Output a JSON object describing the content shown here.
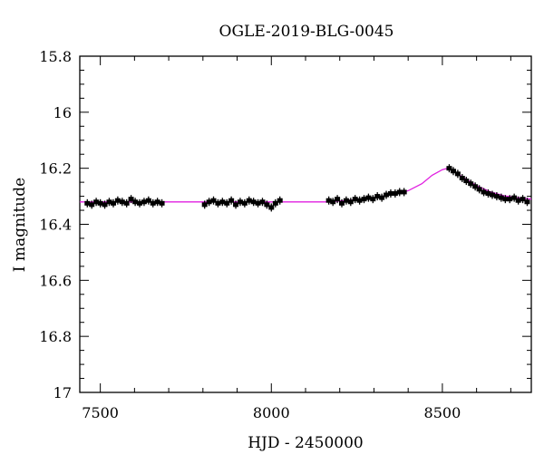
{
  "chart_data": {
    "type": "scatter",
    "title": "OGLE-2019-BLG-0045",
    "xlabel": "HJD - 2450000",
    "ylabel": "I magnitude",
    "xlim": [
      7440,
      8760
    ],
    "ylim": [
      17.0,
      15.8
    ],
    "y_inverted": true,
    "grid": false,
    "x_ticks": [
      7500,
      8000,
      8500
    ],
    "x_tick_labels": [
      "7500",
      "8000",
      "8500"
    ],
    "y_ticks": [
      15.8,
      16.0,
      16.2,
      16.4,
      16.6,
      16.8,
      17.0
    ],
    "y_tick_labels": [
      "15.8",
      "16",
      "16.2",
      "16.4",
      "16.6",
      "16.8",
      "17"
    ],
    "colors": {
      "points": "#000000",
      "model": "#e020e0"
    },
    "series": [
      {
        "type": "scatter",
        "x": [
          7462,
          7475,
          7488,
          7500,
          7513,
          7526,
          7538,
          7551,
          7564,
          7577,
          7590,
          7602,
          7615,
          7628,
          7641,
          7654,
          7667,
          7680,
          7805,
          7818,
          7831,
          7844,
          7857,
          7870,
          7883,
          7896,
          7909,
          7922,
          7935,
          7948,
          7961,
          7974,
          7987,
          8000,
          8012,
          8025,
          8168,
          8180,
          8193,
          8206,
          8219,
          8232,
          8245,
          8258,
          8271,
          8284,
          8297,
          8310,
          8323,
          8336,
          8349,
          8362,
          8375,
          8388,
          8520,
          8532,
          8545,
          8558,
          8570,
          8583,
          8596,
          8608,
          8621,
          8634,
          8646,
          8659,
          8672,
          8684,
          8697,
          8710,
          8722,
          8735,
          8748
        ],
        "y": [
          16.325,
          16.33,
          16.32,
          16.325,
          16.33,
          16.32,
          16.325,
          16.315,
          16.32,
          16.325,
          16.31,
          16.32,
          16.325,
          16.32,
          16.315,
          16.325,
          16.32,
          16.325,
          16.33,
          16.32,
          16.315,
          16.325,
          16.32,
          16.325,
          16.315,
          16.33,
          16.32,
          16.325,
          16.315,
          16.32,
          16.325,
          16.32,
          16.33,
          16.34,
          16.325,
          16.315,
          16.315,
          16.32,
          16.31,
          16.325,
          16.315,
          16.32,
          16.31,
          16.315,
          16.31,
          16.305,
          16.31,
          16.3,
          16.305,
          16.295,
          16.29,
          16.29,
          16.285,
          16.285,
          16.2,
          16.21,
          16.22,
          16.235,
          16.245,
          16.255,
          16.265,
          16.275,
          16.285,
          16.29,
          16.295,
          16.3,
          16.305,
          16.31,
          16.31,
          16.305,
          16.315,
          16.31,
          16.32
        ]
      },
      {
        "type": "line",
        "x": [
          7440,
          8160,
          8200,
          8250,
          8300,
          8350,
          8400,
          8440,
          8470,
          8500,
          8515,
          8530,
          8560,
          8600,
          8640,
          8680,
          8720,
          8760
        ],
        "y": [
          16.32,
          16.32,
          16.317,
          16.312,
          16.305,
          16.295,
          16.28,
          16.255,
          16.225,
          16.205,
          16.2,
          16.207,
          16.232,
          16.262,
          16.284,
          16.298,
          16.305,
          16.31
        ]
      }
    ]
  }
}
